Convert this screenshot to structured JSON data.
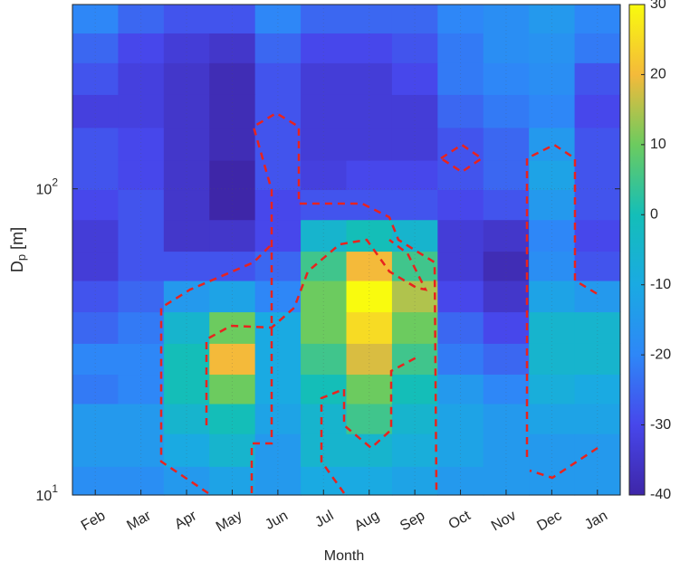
{
  "chart_data": {
    "type": "contour",
    "xlabel": "Month",
    "ylabel": {
      "main": "D",
      "sub": "p",
      "unit": "[m]"
    },
    "categories": [
      "Feb",
      "Mar",
      "Apr",
      "May",
      "Jun",
      "Jul",
      "Aug",
      "Sep",
      "Oct",
      "Nov",
      "Dec",
      "Jan"
    ],
    "y": [
      11,
      14,
      18,
      22,
      28,
      35,
      45,
      56,
      70,
      90,
      110,
      140,
      180,
      230,
      290,
      360
    ],
    "z": [
      [
        -18,
        -18,
        -15,
        -12,
        -15,
        -10,
        -10,
        -12,
        -15,
        -15,
        -15,
        -15
      ],
      [
        -15,
        -15,
        -10,
        -5,
        -15,
        -5,
        -5,
        -8,
        -12,
        -15,
        -15,
        -15
      ],
      [
        -15,
        -15,
        -5,
        0,
        -12,
        -5,
        5,
        -5,
        -12,
        -15,
        -12,
        -12
      ],
      [
        -22,
        -20,
        0,
        10,
        -10,
        0,
        10,
        0,
        -15,
        -20,
        -8,
        -10
      ],
      [
        -20,
        -20,
        0,
        20,
        -10,
        5,
        18,
        5,
        -22,
        -25,
        -5,
        -5
      ],
      [
        -25,
        -22,
        -5,
        10,
        -10,
        10,
        25,
        10,
        -25,
        -30,
        -5,
        -5
      ],
      [
        -28,
        -25,
        -15,
        -12,
        -20,
        10,
        30,
        15,
        -30,
        -35,
        -12,
        -15
      ],
      [
        -33,
        -28,
        -28,
        -28,
        -25,
        5,
        20,
        5,
        -33,
        -38,
        -18,
        -28
      ],
      [
        -33,
        -28,
        -35,
        -35,
        -30,
        -5,
        0,
        -5,
        -33,
        -35,
        -20,
        -30
      ],
      [
        -30,
        -28,
        -35,
        -40,
        -30,
        -28,
        -28,
        -28,
        -30,
        -28,
        -15,
        -28
      ],
      [
        -28,
        -30,
        -35,
        -40,
        -28,
        -32,
        -30,
        -30,
        -28,
        -25,
        -12,
        -28
      ],
      [
        -28,
        -30,
        -35,
        -38,
        -28,
        -33,
        -33,
        -33,
        -28,
        -25,
        -15,
        -28
      ],
      [
        -32,
        -32,
        -35,
        -38,
        -28,
        -33,
        -33,
        -33,
        -25,
        -22,
        -20,
        -30
      ],
      [
        -28,
        -32,
        -35,
        -38,
        -28,
        -33,
        -33,
        -30,
        -22,
        -20,
        -18,
        -28
      ],
      [
        -25,
        -30,
        -33,
        -35,
        -25,
        -30,
        -30,
        -28,
        -22,
        -18,
        -17,
        -22
      ],
      [
        -20,
        -25,
        -28,
        -28,
        -20,
        -25,
        -25,
        -25,
        -20,
        -18,
        -15,
        -20
      ]
    ],
    "ylim": [
      10,
      400
    ],
    "yscale": "log",
    "yticks": [
      {
        "value": 10,
        "label": "10",
        "exponent": "1"
      },
      {
        "value": 100,
        "label": "10",
        "exponent": "2"
      }
    ],
    "grid": true,
    "clim": [
      -40,
      30
    ],
    "cticks": [
      -40,
      -30,
      -20,
      -10,
      0,
      10,
      20,
      30
    ],
    "colormap": [
      "#3e26a8",
      "#4747eb",
      "#2e87f7",
      "#1aaae2",
      "#14beb8",
      "#6ccb5f",
      "#f4ba3a",
      "#f9fb0e"
    ]
  }
}
